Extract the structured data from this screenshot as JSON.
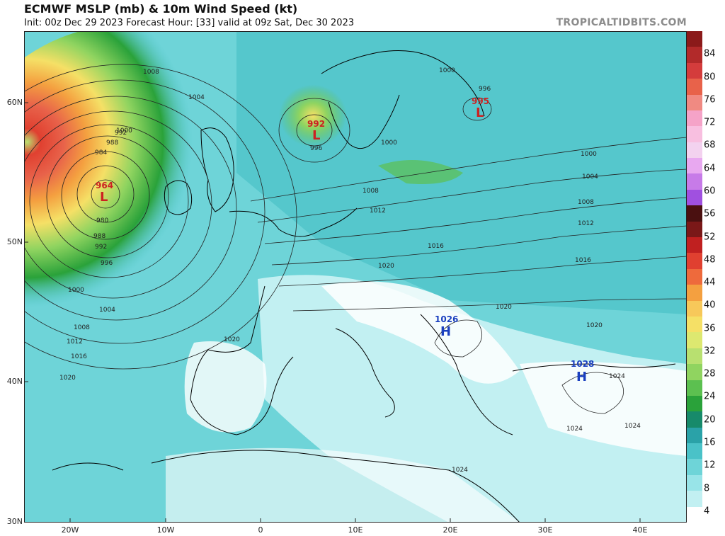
{
  "header": {
    "title": "ECMWF MSLP (mb) & 10m Wind Speed (kt)",
    "subtitle": "Init: 00z Dec 29 2023   Forecast Hour: [33]   valid at 09z Sat, Dec 30 2023",
    "brand": "TROPICALTIDBITS.COM"
  },
  "axes": {
    "lat_labels": [
      "60N",
      "50N",
      "40N",
      "30N"
    ],
    "lon_labels": [
      "20W",
      "10W",
      "0",
      "10E",
      "20E",
      "30E",
      "40E"
    ]
  },
  "pressure_centers": [
    {
      "type": "L",
      "value": "964",
      "color": "#cc2222"
    },
    {
      "type": "L",
      "value": "992",
      "color": "#cc2222"
    },
    {
      "type": "L",
      "value": "995",
      "color": "#cc2222"
    },
    {
      "type": "H",
      "value": "1026",
      "color": "#1a3fbf"
    },
    {
      "type": "H",
      "value": "1028",
      "color": "#1a3fbf"
    }
  ],
  "isobar_labels": [
    "1008",
    "1004",
    "1000",
    "992",
    "988",
    "984",
    "980",
    "988",
    "992",
    "996",
    "1000",
    "1004",
    "1008",
    "1012",
    "1016",
    "1020",
    "996",
    "1000",
    "1008",
    "1012",
    "1016",
    "1020",
    "1000",
    "1004",
    "1008",
    "1012",
    "1016",
    "1020",
    "1020",
    "1024",
    "1024",
    "1024",
    "1024",
    "1020",
    "996",
    "1000"
  ],
  "legend": {
    "labels": [
      "84",
      "80",
      "76",
      "72",
      "68",
      "64",
      "60",
      "56",
      "52",
      "48",
      "44",
      "40",
      "36",
      "32",
      "28",
      "24",
      "20",
      "16",
      "12",
      "8",
      "4"
    ],
    "colors": [
      "#8b1a1a",
      "#b22a2a",
      "#d43c3c",
      "#e8624a",
      "#f08a82",
      "#f5a3c8",
      "#f8bfe0",
      "#f3d2ef",
      "#e8a8f0",
      "#c77be8",
      "#a050e0",
      "#4a1010",
      "#7a1818",
      "#c02020",
      "#e04030",
      "#ee6a3c",
      "#f4a040",
      "#f7c85a",
      "#f5e066",
      "#dde870",
      "#b8e070",
      "#90d460",
      "#5cc050",
      "#2aa23a",
      "#178a6a",
      "#2aa2a8",
      "#4ac2c8",
      "#6ed4d8",
      "#98e4e8",
      "#c2f0f2",
      "#ffffff"
    ]
  }
}
